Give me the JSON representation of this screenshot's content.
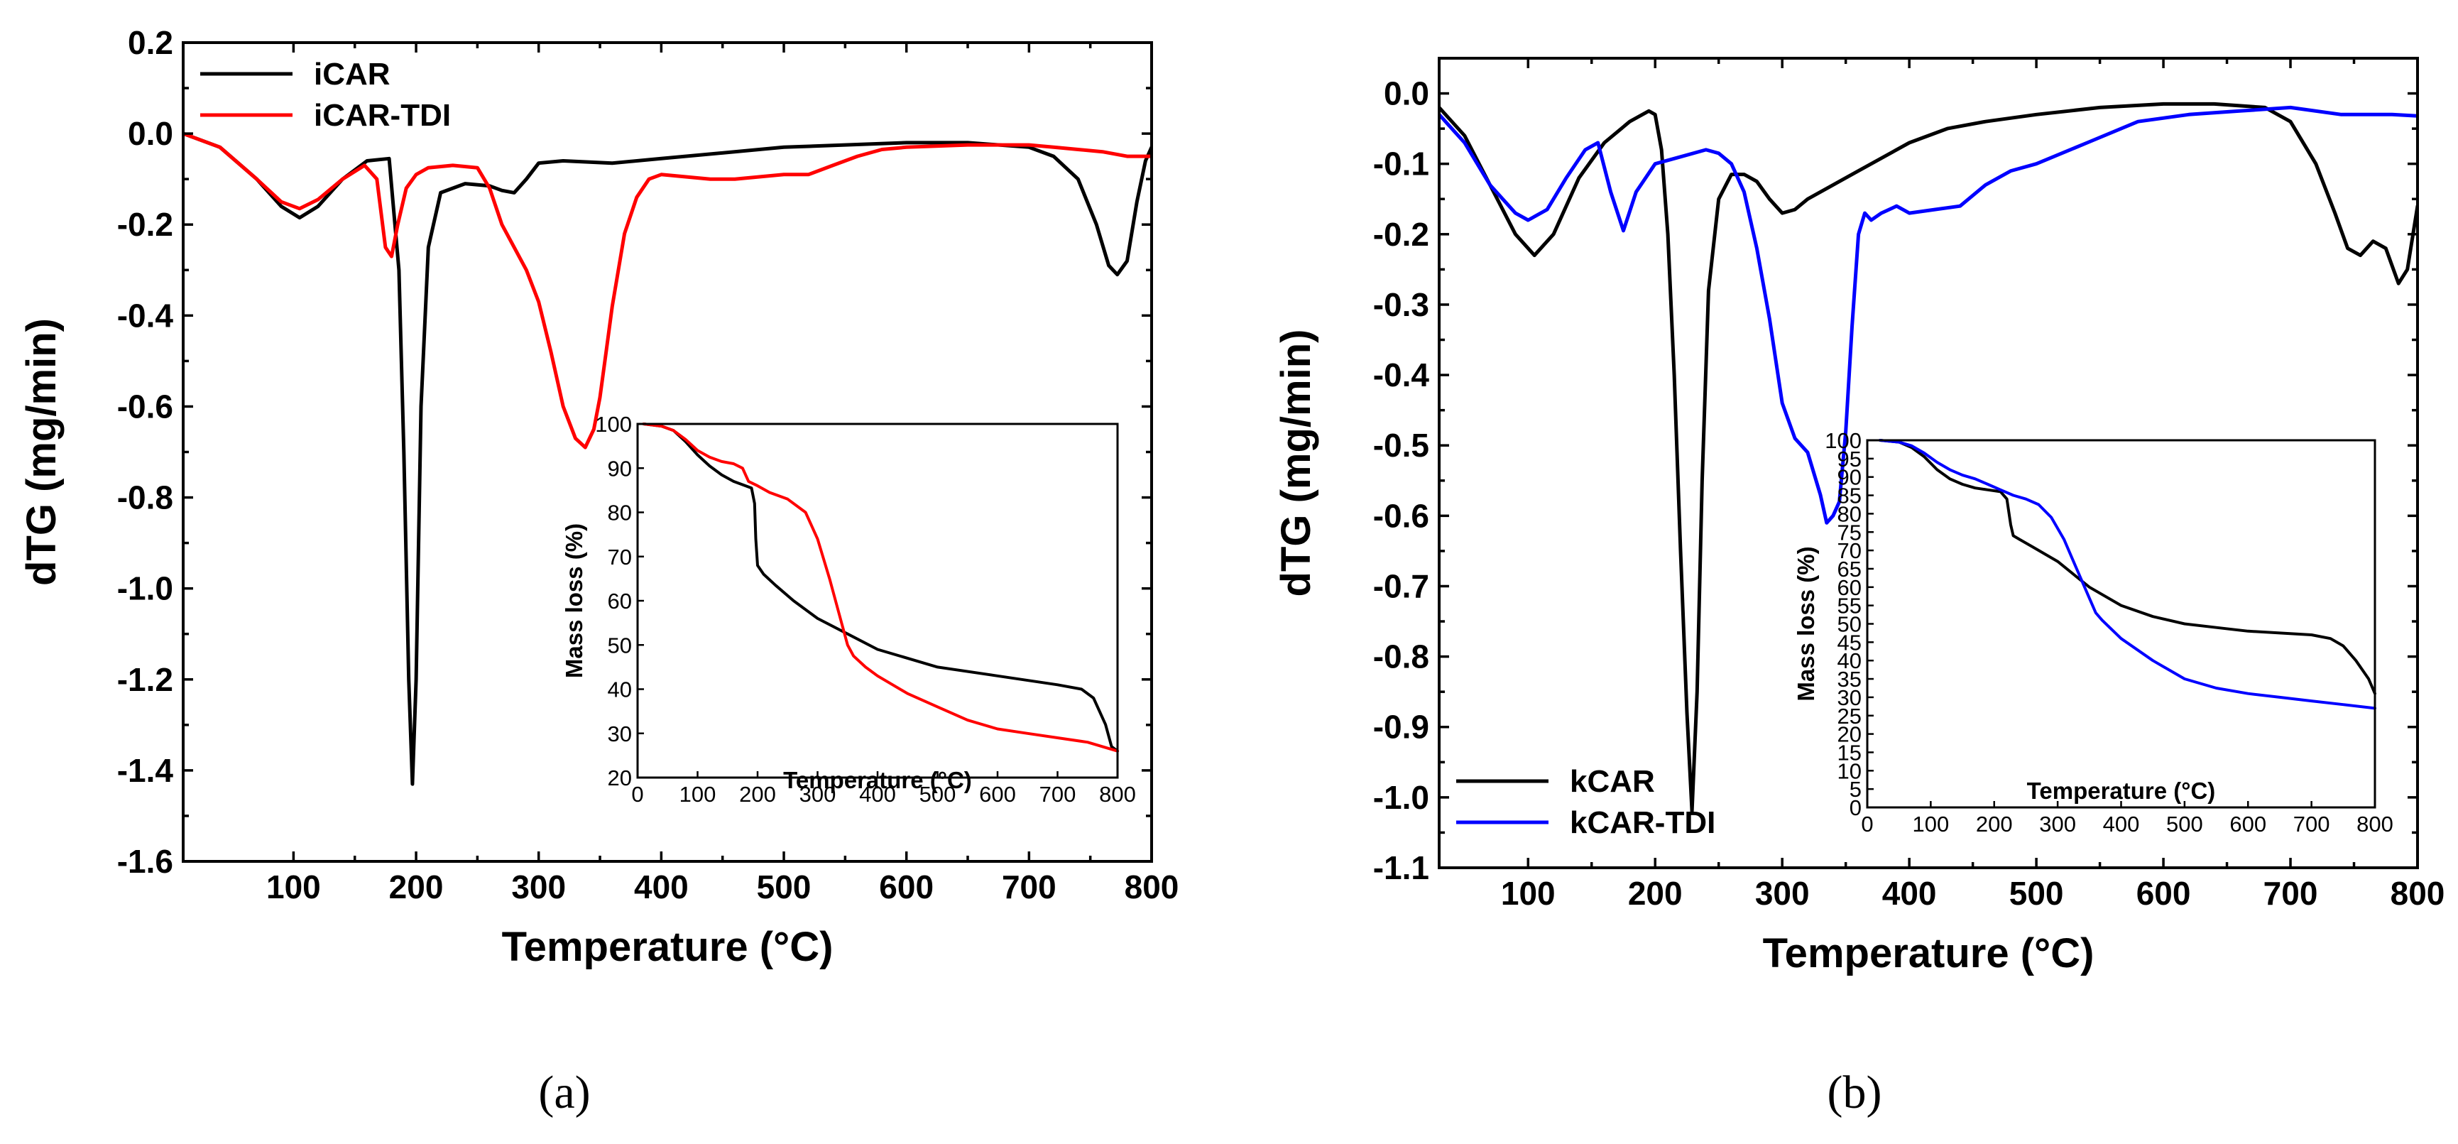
{
  "chart_data": [
    {
      "type": "line",
      "panel_label": "(a)",
      "xlabel": "Temperature (°C)",
      "ylabel": "dTG (mg/min)",
      "xlim": [
        10,
        800
      ],
      "ylim": [
        -1.6,
        0.2
      ],
      "xticks": [
        100,
        200,
        300,
        400,
        500,
        600,
        700,
        800
      ],
      "xtick_labels": [
        "100",
        "200",
        "300",
        "400",
        "500",
        "600",
        "700",
        "800"
      ],
      "yticks": [
        0.2,
        0.0,
        -0.2,
        -0.4,
        -0.6,
        -0.8,
        -1.0,
        -1.2,
        -1.4,
        -1.6
      ],
      "ytick_labels": [
        "0.2",
        "0.0",
        "-0.2",
        "-0.4",
        "-0.6",
        "-0.8",
        "-1.0",
        "-1.2",
        "-1.4",
        "-1.6"
      ],
      "legend_position": "top-left",
      "series": [
        {
          "name": "iCAR",
          "color": "#000000",
          "x": [
            10,
            40,
            70,
            90,
            105,
            120,
            140,
            160,
            178,
            186,
            190,
            194,
            197,
            200,
            204,
            210,
            220,
            240,
            260,
            270,
            280,
            290,
            300,
            320,
            360,
            400,
            500,
            600,
            650,
            700,
            720,
            740,
            755,
            765,
            772,
            780,
            788,
            795,
            800
          ],
          "y": [
            0.0,
            -0.03,
            -0.1,
            -0.16,
            -0.185,
            -0.16,
            -0.1,
            -0.06,
            -0.055,
            -0.3,
            -0.7,
            -1.2,
            -1.43,
            -1.2,
            -0.6,
            -0.25,
            -0.13,
            -0.11,
            -0.115,
            -0.125,
            -0.13,
            -0.1,
            -0.065,
            -0.06,
            -0.065,
            -0.055,
            -0.03,
            -0.02,
            -0.02,
            -0.03,
            -0.05,
            -0.1,
            -0.2,
            -0.29,
            -0.31,
            -0.28,
            -0.15,
            -0.06,
            -0.03
          ]
        },
        {
          "name": "iCAR-TDI",
          "color": "#ff0000",
          "x": [
            10,
            40,
            70,
            90,
            105,
            120,
            140,
            158,
            168,
            175,
            180,
            185,
            192,
            200,
            210,
            230,
            250,
            260,
            270,
            280,
            290,
            300,
            310,
            320,
            330,
            338,
            345,
            350,
            355,
            360,
            370,
            380,
            390,
            400,
            420,
            440,
            460,
            480,
            500,
            520,
            540,
            560,
            580,
            600,
            650,
            700,
            720,
            740,
            760,
            780,
            800
          ],
          "y": [
            0.0,
            -0.03,
            -0.1,
            -0.15,
            -0.165,
            -0.145,
            -0.1,
            -0.07,
            -0.1,
            -0.25,
            -0.27,
            -0.2,
            -0.12,
            -0.09,
            -0.075,
            -0.07,
            -0.075,
            -0.12,
            -0.2,
            -0.25,
            -0.3,
            -0.37,
            -0.48,
            -0.6,
            -0.67,
            -0.69,
            -0.65,
            -0.58,
            -0.48,
            -0.38,
            -0.22,
            -0.14,
            -0.1,
            -0.09,
            -0.095,
            -0.1,
            -0.1,
            -0.095,
            -0.09,
            -0.09,
            -0.07,
            -0.05,
            -0.035,
            -0.03,
            -0.025,
            -0.025,
            -0.03,
            -0.035,
            -0.04,
            -0.05,
            -0.05
          ]
        }
      ],
      "inset": {
        "type": "line",
        "xlabel": "Temperature (°C)",
        "ylabel": "Mass loss (%)",
        "xlim": [
          0,
          800
        ],
        "ylim": [
          20,
          100
        ],
        "xticks": [
          0,
          100,
          200,
          300,
          400,
          500,
          600,
          700,
          800
        ],
        "xtick_labels": [
          "0",
          "100",
          "200",
          "300",
          "400",
          "500",
          "600",
          "700",
          "800"
        ],
        "yticks": [
          20,
          30,
          40,
          50,
          60,
          70,
          80,
          90,
          100
        ],
        "ytick_labels": [
          "20",
          "30",
          "40",
          "50",
          "60",
          "70",
          "80",
          "90",
          "100"
        ],
        "series": [
          {
            "name": "iCAR",
            "color": "#000000",
            "x": [
              10,
              40,
              60,
              80,
              100,
              120,
              140,
              160,
              180,
              190,
              195,
              197,
              200,
              210,
              230,
              260,
              300,
              350,
              400,
              500,
              600,
              700,
              740,
              760,
              780,
              790,
              800
            ],
            "y": [
              100,
              99.5,
              98.5,
              96,
              93,
              90.5,
              88.5,
              87,
              86,
              85.5,
              82,
              74,
              68,
              66,
              63.5,
              60,
              56,
              52.5,
              49,
              45,
              43,
              41,
              40,
              38,
              32,
              27,
              26
            ]
          },
          {
            "name": "iCAR-TDI",
            "color": "#ff0000",
            "x": [
              10,
              40,
              60,
              80,
              100,
              120,
              140,
              160,
              175,
              185,
              200,
              220,
              250,
              280,
              300,
              320,
              340,
              350,
              360,
              380,
              400,
              450,
              500,
              550,
              600,
              650,
              700,
              750,
              800
            ],
            "y": [
              100,
              99.5,
              98.5,
              96.5,
              94,
              92.5,
              91.5,
              91,
              90,
              87,
              86,
              84.5,
              83,
              80,
              74,
              65,
              55,
              50,
              47.5,
              45,
              43,
              39,
              36,
              33,
              31,
              30,
              29,
              28,
              26
            ]
          }
        ]
      }
    },
    {
      "type": "line",
      "panel_label": "(b)",
      "xlabel": "Temperature (°C)",
      "ylabel": "dTG (mg/min)",
      "xlim": [
        30,
        800
      ],
      "ylim": [
        -1.1,
        0.05
      ],
      "xticks": [
        100,
        200,
        300,
        400,
        500,
        600,
        700,
        800
      ],
      "xtick_labels": [
        "100",
        "200",
        "300",
        "400",
        "500",
        "600",
        "700",
        "800"
      ],
      "yticks": [
        0.0,
        -0.1,
        -0.2,
        -0.3,
        -0.4,
        -0.5,
        -0.6,
        -0.7,
        -0.8,
        -0.9,
        -1.0,
        -1.1
      ],
      "ytick_labels": [
        "0.0",
        "-0.1",
        "-0.2",
        "-0.3",
        "-0.4",
        "-0.5",
        "-0.6",
        "-0.7",
        "-0.8",
        "-0.9",
        "-1.0",
        "-1.1"
      ],
      "legend_position": "bottom-left",
      "series": [
        {
          "name": "kCAR",
          "color": "#000000",
          "x": [
            30,
            50,
            70,
            90,
            105,
            120,
            140,
            160,
            180,
            195,
            200,
            205,
            210,
            215,
            220,
            225,
            229,
            233,
            237,
            242,
            250,
            260,
            270,
            280,
            290,
            300,
            310,
            320,
            340,
            360,
            380,
            400,
            430,
            460,
            500,
            550,
            600,
            640,
            680,
            700,
            720,
            735,
            745,
            755,
            765,
            775,
            785,
            792,
            800
          ],
          "y": [
            -0.02,
            -0.06,
            -0.13,
            -0.2,
            -0.23,
            -0.2,
            -0.12,
            -0.07,
            -0.04,
            -0.025,
            -0.03,
            -0.08,
            -0.2,
            -0.4,
            -0.65,
            -0.88,
            -1.02,
            -0.85,
            -0.55,
            -0.28,
            -0.15,
            -0.115,
            -0.115,
            -0.125,
            -0.15,
            -0.17,
            -0.165,
            -0.15,
            -0.13,
            -0.11,
            -0.09,
            -0.07,
            -0.05,
            -0.04,
            -0.03,
            -0.02,
            -0.015,
            -0.015,
            -0.02,
            -0.04,
            -0.1,
            -0.17,
            -0.22,
            -0.23,
            -0.21,
            -0.22,
            -0.27,
            -0.25,
            -0.16
          ]
        },
        {
          "name": "kCAR-TDI",
          "color": "#0000ff",
          "x": [
            30,
            50,
            70,
            90,
            100,
            115,
            130,
            145,
            155,
            165,
            175,
            185,
            200,
            220,
            240,
            250,
            260,
            270,
            280,
            290,
            300,
            310,
            320,
            330,
            335,
            340,
            345,
            350,
            355,
            360,
            365,
            370,
            378,
            390,
            400,
            420,
            440,
            460,
            480,
            500,
            540,
            580,
            620,
            660,
            700,
            740,
            760,
            780,
            800
          ],
          "y": [
            -0.03,
            -0.07,
            -0.13,
            -0.17,
            -0.18,
            -0.165,
            -0.12,
            -0.08,
            -0.07,
            -0.14,
            -0.195,
            -0.14,
            -0.1,
            -0.09,
            -0.08,
            -0.085,
            -0.1,
            -0.14,
            -0.22,
            -0.32,
            -0.44,
            -0.49,
            -0.51,
            -0.57,
            -0.61,
            -0.6,
            -0.58,
            -0.48,
            -0.33,
            -0.2,
            -0.17,
            -0.18,
            -0.17,
            -0.16,
            -0.17,
            -0.165,
            -0.16,
            -0.13,
            -0.11,
            -0.1,
            -0.07,
            -0.04,
            -0.03,
            -0.025,
            -0.02,
            -0.03,
            -0.03,
            -0.03,
            -0.032
          ]
        }
      ],
      "inset": {
        "type": "line",
        "xlabel": "Temperature (°C)",
        "ylabel": "Mass loss (%)",
        "xlim": [
          0,
          800
        ],
        "ylim": [
          0,
          100
        ],
        "xticks": [
          0,
          100,
          200,
          300,
          400,
          500,
          600,
          700,
          800
        ],
        "xtick_labels": [
          "0",
          "100",
          "200",
          "300",
          "400",
          "500",
          "600",
          "700",
          "800"
        ],
        "yticks": [
          0,
          5,
          10,
          15,
          20,
          25,
          30,
          35,
          40,
          45,
          50,
          55,
          60,
          65,
          70,
          75,
          80,
          85,
          90,
          95,
          100
        ],
        "ytick_labels": [
          "0",
          "5",
          "10",
          "15",
          "20",
          "25",
          "30",
          "35",
          "40",
          "45",
          "50",
          "55",
          "60",
          "65",
          "70",
          "75",
          "80",
          "85",
          "90",
          "95",
          "100"
        ],
        "series": [
          {
            "name": "kCAR",
            "color": "#000000",
            "x": [
              20,
              50,
              70,
              90,
              110,
              130,
              150,
              170,
              190,
              210,
              220,
              226,
              230,
              240,
              260,
              300,
              350,
              400,
              450,
              500,
              550,
              600,
              650,
              700,
              730,
              750,
              770,
              790,
              800
            ],
            "y": [
              100,
              99.5,
              98,
              95.5,
              92,
              89.5,
              88,
              87,
              86.5,
              86,
              84,
              77,
              74,
              73,
              71,
              67,
              60,
              55,
              52,
              50,
              49,
              48,
              47.5,
              47,
              46,
              44,
              40,
              35,
              31
            ]
          },
          {
            "name": "kCAR-TDI",
            "color": "#0000ff",
            "x": [
              20,
              50,
              70,
              90,
              110,
              130,
              150,
              170,
              190,
              210,
              230,
              250,
              270,
              290,
              310,
              330,
              350,
              360,
              370,
              400,
              450,
              500,
              550,
              600,
              650,
              700,
              750,
              800
            ],
            "y": [
              100,
              99.5,
              98.5,
              96.5,
              94,
              92,
              90.5,
              89.5,
              88,
              86.5,
              85,
              84,
              82.5,
              79,
              73,
              65,
              57,
              53,
              51,
              46,
              40,
              35,
              32.5,
              31,
              30,
              29,
              28,
              27
            ]
          }
        ]
      }
    }
  ]
}
